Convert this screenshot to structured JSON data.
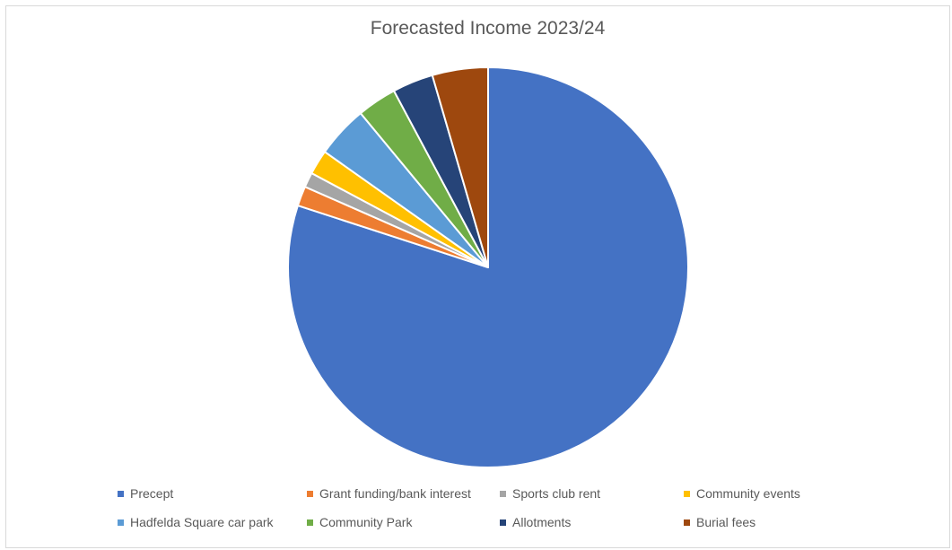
{
  "chart_data": {
    "type": "pie",
    "title": "Forecasted Income 2023/24",
    "start_angle_deg": 0,
    "direction": "clockwise",
    "legend_position": "bottom",
    "slices": [
      {
        "label": "Precept",
        "value": 80.0,
        "color": "#4472C4"
      },
      {
        "label": "Grant funding/bank interest",
        "value": 1.6,
        "color": "#ED7D31"
      },
      {
        "label": "Sports club rent",
        "value": 1.2,
        "color": "#A5A5A5"
      },
      {
        "label": "Community events",
        "value": 2.0,
        "color": "#FFC000"
      },
      {
        "label": "Hadfelda Square car park",
        "value": 4.2,
        "color": "#5B9BD5"
      },
      {
        "label": "Community Park",
        "value": 3.2,
        "color": "#70AD47"
      },
      {
        "label": "Allotments",
        "value": 3.3,
        "color": "#264478"
      },
      {
        "label": "Burial fees",
        "value": 4.5,
        "color": "#9E480E"
      }
    ]
  }
}
